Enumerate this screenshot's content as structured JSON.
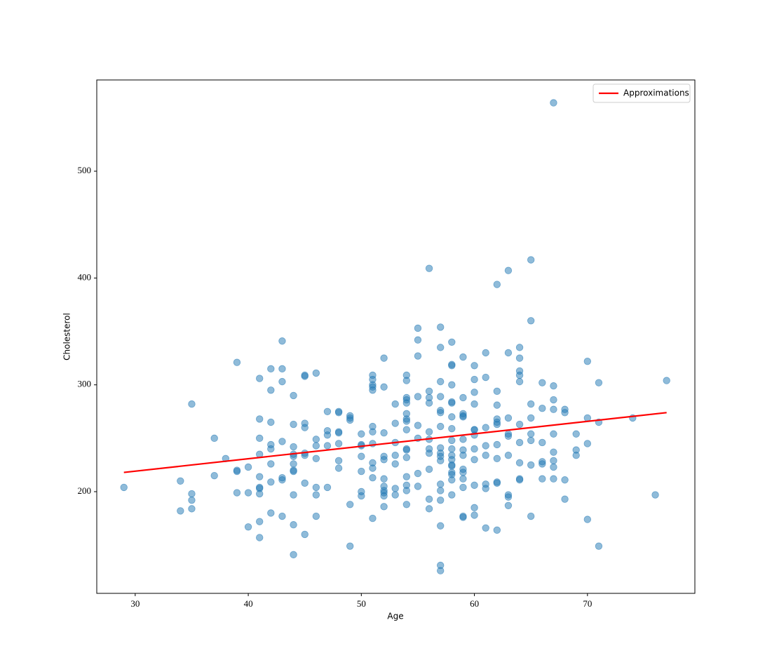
{
  "chart_data": {
    "type": "scatter",
    "xlabel": "Age",
    "ylabel": "Cholesterol",
    "xlim": [
      26.6,
      79.5
    ],
    "ylim": [
      104.8,
      585.4
    ],
    "xticks": [
      30,
      40,
      50,
      60,
      70
    ],
    "yticks": [
      200,
      300,
      400,
      500
    ],
    "legend": "upper right",
    "series": [
      {
        "type": "scatter",
        "color": "#1f77b4",
        "x": [
          29,
          34,
          34,
          35,
          35,
          35,
          35,
          37,
          37,
          38,
          39,
          39,
          39,
          39,
          40,
          40,
          40,
          41,
          41,
          41,
          41,
          41,
          41,
          41,
          41,
          41,
          41,
          42,
          42,
          42,
          42,
          42,
          42,
          42,
          42,
          43,
          43,
          43,
          43,
          43,
          43,
          43,
          44,
          44,
          44,
          44,
          44,
          44,
          44,
          44,
          44,
          44,
          44,
          45,
          45,
          45,
          45,
          45,
          45,
          45,
          45,
          46,
          46,
          46,
          46,
          46,
          46,
          46,
          47,
          47,
          47,
          47,
          47,
          48,
          48,
          48,
          48,
          48,
          48,
          48,
          49,
          49,
          49,
          49,
          49,
          50,
          50,
          50,
          50,
          50,
          50,
          50,
          51,
          51,
          51,
          51,
          51,
          51,
          51,
          51,
          51,
          51,
          51,
          51,
          52,
          52,
          52,
          52,
          52,
          52,
          52,
          52,
          52,
          52,
          52,
          53,
          53,
          53,
          53,
          53,
          53,
          53,
          54,
          54,
          54,
          54,
          54,
          54,
          54,
          54,
          54,
          54,
          54,
          54,
          54,
          54,
          54,
          54,
          55,
          55,
          55,
          55,
          55,
          55,
          55,
          55,
          56,
          56,
          56,
          56,
          56,
          56,
          56,
          56,
          56,
          56,
          56,
          57,
          57,
          57,
          57,
          57,
          57,
          57,
          57,
          57,
          57,
          57,
          57,
          57,
          57,
          57,
          57,
          57,
          58,
          58,
          58,
          58,
          58,
          58,
          58,
          58,
          58,
          58,
          58,
          58,
          58,
          58,
          58,
          58,
          58,
          58,
          59,
          59,
          59,
          59,
          59,
          59,
          59,
          59,
          59,
          59,
          59,
          59,
          59,
          59,
          60,
          60,
          60,
          60,
          60,
          60,
          60,
          60,
          60,
          60,
          60,
          60,
          61,
          61,
          61,
          61,
          61,
          61,
          61,
          61,
          62,
          62,
          62,
          62,
          62,
          62,
          62,
          62,
          62,
          62,
          62,
          63,
          63,
          63,
          63,
          63,
          63,
          63,
          63,
          63,
          64,
          64,
          64,
          64,
          64,
          64,
          64,
          64,
          64,
          64,
          65,
          65,
          65,
          65,
          65,
          65,
          65,
          65,
          66,
          66,
          66,
          66,
          66,
          66,
          67,
          67,
          67,
          67,
          67,
          67,
          67,
          67,
          67,
          68,
          68,
          68,
          68,
          69,
          69,
          69,
          70,
          70,
          70,
          70,
          71,
          71,
          71,
          74,
          76,
          77
        ],
        "y": [
          204,
          210,
          182,
          282,
          198,
          192,
          184,
          250,
          215,
          231,
          321,
          220,
          219,
          199,
          223,
          199,
          167,
          306,
          268,
          250,
          235,
          214,
          204,
          203,
          198,
          172,
          157,
          315,
          295,
          265,
          244,
          240,
          226,
          209,
          180,
          341,
          315,
          303,
          247,
          213,
          211,
          177,
          290,
          263,
          242,
          235,
          233,
          226,
          220,
          219,
          197,
          169,
          141,
          309,
          308,
          264,
          260,
          236,
          234,
          208,
          160,
          311,
          249,
          243,
          231,
          204,
          197,
          177,
          275,
          257,
          253,
          243,
          204,
          275,
          274,
          256,
          255,
          245,
          229,
          222,
          271,
          269,
          267,
          188,
          149,
          254,
          244,
          243,
          233,
          219,
          200,
          196,
          309,
          305,
          300,
          298,
          295,
          261,
          256,
          245,
          227,
          222,
          213,
          175,
          325,
          298,
          255,
          233,
          230,
          212,
          205,
          201,
          199,
          196,
          186,
          282,
          264,
          246,
          234,
          226,
          203,
          197,
          309,
          304,
          288,
          286,
          283,
          273,
          268,
          266,
          258,
          240,
          239,
          232,
          214,
          206,
          201,
          188,
          353,
          342,
          327,
          289,
          262,
          250,
          217,
          205,
          409,
          294,
          288,
          283,
          256,
          249,
          240,
          236,
          221,
          193,
          184,
          354,
          335,
          303,
          289,
          276,
          274,
          261,
          241,
          236,
          233,
          229,
          207,
          201,
          192,
          168,
          131,
          126,
          340,
          319,
          318,
          300,
          284,
          283,
          270,
          259,
          248,
          240,
          234,
          230,
          225,
          224,
          218,
          216,
          211,
          197,
          326,
          288,
          273,
          271,
          270,
          249,
          239,
          234,
          221,
          218,
          212,
          204,
          177,
          176,
          318,
          305,
          293,
          282,
          258,
          258,
          253,
          240,
          230,
          206,
          185,
          178,
          330,
          307,
          260,
          243,
          234,
          207,
          203,
          166,
          394,
          294,
          281,
          268,
          265,
          263,
          244,
          231,
          209,
          208,
          164,
          407,
          330,
          269,
          254,
          252,
          234,
          197,
          195,
          187,
          335,
          325,
          313,
          309,
          303,
          263,
          246,
          227,
          212,
          211,
          417,
          360,
          282,
          269,
          254,
          248,
          225,
          177,
          302,
          278,
          246,
          228,
          226,
          212,
          564,
          299,
          286,
          277,
          254,
          237,
          229,
          223,
          212,
          277,
          274,
          211,
          193,
          254,
          239,
          234,
          322,
          269,
          245,
          174,
          302,
          265,
          149,
          269,
          197,
          304
        ]
      },
      {
        "type": "line",
        "name": "Approximations",
        "color": "#ff0000",
        "x": [
          29,
          77
        ],
        "y": [
          218,
          274
        ]
      }
    ]
  }
}
